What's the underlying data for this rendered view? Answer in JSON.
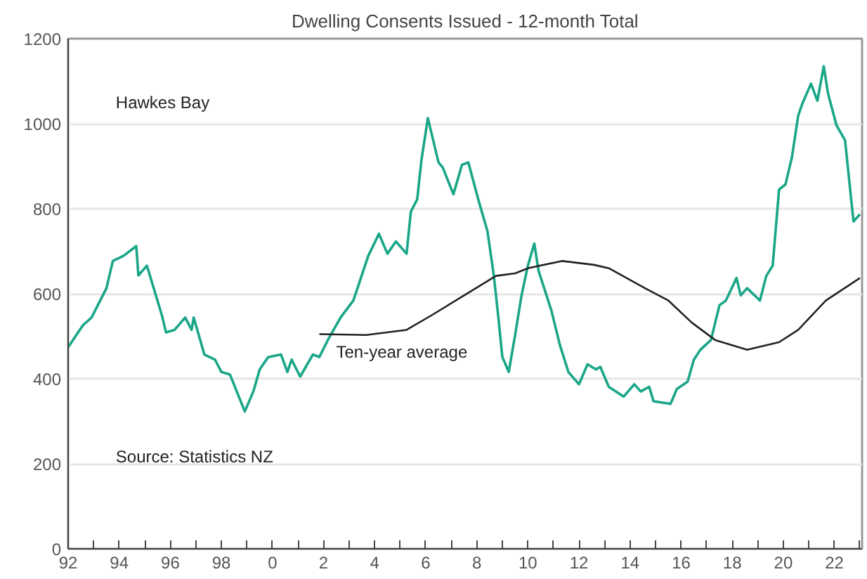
{
  "chart_data": {
    "type": "line",
    "title": "Dwelling Consents Issued - 12-month Total",
    "annotations": [
      "Hawkes Bay",
      "Source: Statistics NZ"
    ],
    "xlim": [
      "1992-01",
      "2023-02"
    ],
    "ylim": [
      0,
      1200
    ],
    "xticks": [
      {
        "value": "1992",
        "label": "92"
      },
      {
        "value": "1993",
        "label": null
      },
      {
        "value": "1994",
        "label": "94"
      },
      {
        "value": "1995",
        "label": null
      },
      {
        "value": "1996",
        "label": "96"
      },
      {
        "value": "1997",
        "label": null
      },
      {
        "value": "1998",
        "label": "98"
      },
      {
        "value": "1999",
        "label": null
      },
      {
        "value": "2000",
        "label": "0"
      },
      {
        "value": "2001",
        "label": null
      },
      {
        "value": "2002",
        "label": "2"
      },
      {
        "value": "2003",
        "label": null
      },
      {
        "value": "2004",
        "label": "4"
      },
      {
        "value": "2005",
        "label": null
      },
      {
        "value": "2006",
        "label": "6"
      },
      {
        "value": "2007",
        "label": null
      },
      {
        "value": "2008",
        "label": "8"
      },
      {
        "value": "2009",
        "label": null
      },
      {
        "value": "2010",
        "label": "10"
      },
      {
        "value": "2011",
        "label": null
      },
      {
        "value": "2012",
        "label": "12"
      },
      {
        "value": "2013",
        "label": null
      },
      {
        "value": "2014",
        "label": "14"
      },
      {
        "value": "2015",
        "label": null
      },
      {
        "value": "2016",
        "label": "16"
      },
      {
        "value": "2017",
        "label": null
      },
      {
        "value": "2018",
        "label": "18"
      },
      {
        "value": "2019",
        "label": null
      },
      {
        "value": "2020",
        "label": "20"
      },
      {
        "value": "2021",
        "label": null
      },
      {
        "value": "2022",
        "label": "22"
      },
      {
        "value": "2023",
        "label": null
      }
    ],
    "yticks": [
      0,
      200,
      400,
      600,
      800,
      1000,
      1200
    ],
    "grid": "y",
    "legend": false,
    "marker": "none",
    "line_style": "solid",
    "series": [
      {
        "color": "#1aa688",
        "x": [
          "1992-01",
          "1992-05",
          "1992-08",
          "1992-12",
          "1993-07",
          "1993-10",
          "1994-03",
          "1994-09",
          "1994-10",
          "1995-02",
          "1995-09",
          "1995-11",
          "1996-03",
          "1996-08",
          "1996-11",
          "1996-12",
          "1997-05",
          "1997-10",
          "1998-01",
          "1998-05",
          "1998-12",
          "1999-04",
          "1999-07",
          "1999-11",
          "2000-05",
          "2000-08",
          "2000-10",
          "2001-02",
          "2001-08",
          "2001-11",
          "2002-03",
          "2002-09",
          "2003-03",
          "2003-10",
          "2004-03",
          "2004-07",
          "2004-11",
          "2005-04",
          "2005-06",
          "2005-09",
          "2005-11",
          "2006-02",
          "2006-07",
          "2006-09",
          "2007-02",
          "2007-06",
          "2007-09",
          "2008-02",
          "2008-06",
          "2008-09",
          "2008-11",
          "2009-01",
          "2009-04",
          "2009-07",
          "2009-10",
          "2010-01",
          "2010-04",
          "2010-06",
          "2010-12",
          "2011-04",
          "2011-08",
          "2012-01",
          "2012-05",
          "2012-09",
          "2012-11",
          "2013-03",
          "2013-10",
          "2014-03",
          "2014-06",
          "2014-10",
          "2014-12",
          "2015-08",
          "2015-11",
          "2016-04",
          "2016-07",
          "2016-10",
          "2017-03",
          "2017-07",
          "2017-10",
          "2018-03",
          "2018-05",
          "2018-08",
          "2019-02",
          "2019-05",
          "2019-08",
          "2019-11",
          "2020-02",
          "2020-05",
          "2020-08",
          "2020-10",
          "2021-02",
          "2021-05",
          "2021-08",
          "2021-10",
          "2022-02",
          "2022-06",
          "2022-09",
          "2022-10",
          "2023-01"
        ],
        "values": [
          474,
          504,
          526,
          544,
          613,
          677,
          689,
          712,
          643,
          666,
          550,
          509,
          515,
          544,
          515,
          544,
          457,
          445,
          416,
          410,
          323,
          370,
          422,
          451,
          457,
          416,
          445,
          405,
          457,
          451,
          491,
          544,
          584,
          689,
          741,
          694,
          723,
          694,
          793,
          822,
          915,
          1013,
          909,
          897,
          834,
          903,
          909,
          816,
          747,
          642,
          550,
          451,
          416,
          503,
          596,
          666,
          718,
          654,
          561,
          480,
          416,
          387,
          434,
          422,
          428,
          381,
          358,
          387,
          370,
          381,
          347,
          341,
          376,
          393,
          445,
          468,
          491,
          573,
          584,
          637,
          596,
          613,
          584,
          642,
          666,
          845,
          857,
          920,
          1019,
          1048,
          1094,
          1054,
          1135,
          1071,
          996,
          961,
          816,
          770,
          787
        ]
      },
      {
        "name": "Ten-year average",
        "color": "#222222",
        "x": [
          "2001-11",
          "2003-09",
          "2005-04",
          "2006-04",
          "2007-05",
          "2008-10",
          "2009-07",
          "2010-01",
          "2011-05",
          "2012-08",
          "2013-03",
          "2014-08",
          "2015-07",
          "2016-06",
          "2017-05",
          "2018-08",
          "2019-11",
          "2020-08",
          "2021-09",
          "2023-01"
        ],
        "values": [
          505,
          503,
          515,
          550,
          590,
          642,
          648,
          660,
          677,
          668,
          660,
          613,
          584,
          532,
          491,
          468,
          486,
          515,
          584,
          637
        ]
      }
    ]
  }
}
